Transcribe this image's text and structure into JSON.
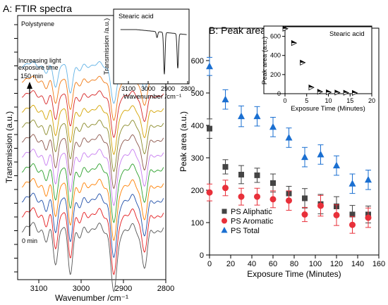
{
  "chart_data": [
    {
      "type": "line",
      "title": "A: FTIR spectra",
      "subtitle": "Polystyrene",
      "xlabel": "Wavenumber /cm⁻¹",
      "ylabel": "Transmission (a.u.)",
      "xlim": [
        3150,
        2800
      ],
      "x_ticks": [
        "3100",
        "3000",
        "2900",
        "2800"
      ],
      "annotations": {
        "arrow_text_line1": "Increasing light",
        "arrow_text_line2": "exposure time",
        "top_time": "150 min",
        "bottom_time": "0 min"
      },
      "series_colors": [
        "#555555",
        "#e41a1c",
        "#1f4ea8",
        "#ff7f00",
        "#2ca02c",
        "#c77cf0",
        "#8c564b",
        "#8a8a2a",
        "#d4a300",
        "#d62728",
        "#f07a14",
        "#63b3e6"
      ],
      "peaks": [
        {
          "x": 3082,
          "depth": 0.35
        },
        {
          "x": 3060,
          "depth": 0.75
        },
        {
          "x": 3026,
          "depth": 1.0
        },
        {
          "x": 3002,
          "depth": 0.25
        },
        {
          "x": 2922,
          "depth": 1.5
        },
        {
          "x": 2850,
          "depth": 0.85
        }
      ],
      "inset": {
        "title": "Stearic acid",
        "xlabel": "Wavenumber /cm⁻¹",
        "ylabel": "Transmission /a.u.)",
        "xlim": [
          3150,
          2800
        ],
        "x_ticks": [
          "3100",
          "3000",
          "2900",
          "2800"
        ],
        "peaks": [
          {
            "x": 2955,
            "depth": 0.12
          },
          {
            "x": 2918,
            "depth": 0.85
          },
          {
            "x": 2850,
            "depth": 0.7
          }
        ]
      }
    },
    {
      "type": "scatter",
      "title": "B: Peak areas",
      "xlabel": "Exposure Time (Minutes)",
      "ylabel": "Peak area (a.u.)",
      "xlim": [
        0,
        160
      ],
      "ylim": [
        0,
        700
      ],
      "x_ticks": [
        0,
        20,
        40,
        60,
        80,
        100,
        120,
        140,
        160
      ],
      "y_ticks": [
        0,
        100,
        200,
        300,
        400,
        500,
        600
      ],
      "legend_position": "bottom-left",
      "x": [
        0,
        15,
        30,
        45,
        60,
        75,
        90,
        105,
        120,
        135,
        150
      ],
      "series": [
        {
          "name": "PS Aliphatic",
          "color": "#444444",
          "marker": "square",
          "values": [
            390,
            272,
            248,
            246,
            222,
            190,
            175,
            157,
            150,
            125,
            125
          ],
          "errors": [
            30,
            22,
            28,
            22,
            28,
            22,
            30,
            30,
            30,
            28,
            26
          ]
        },
        {
          "name": "PS Aromatic",
          "color": "#e8303a",
          "marker": "circle",
          "values": [
            193,
            207,
            180,
            180,
            172,
            168,
            125,
            152,
            123,
            93,
            115
          ],
          "errors": [
            26,
            24,
            26,
            26,
            26,
            30,
            22,
            32,
            32,
            26,
            30
          ]
        },
        {
          "name": "PS Total",
          "color": "#1a6fd1",
          "marker": "triangle",
          "values": [
            582,
            480,
            428,
            428,
            395,
            362,
            302,
            310,
            276,
            220,
            232
          ],
          "errors": [
            28,
            30,
            32,
            30,
            30,
            30,
            30,
            30,
            30,
            30,
            30
          ]
        }
      ],
      "inset": {
        "title": "Stearic acid",
        "xlabel": "Exposure Time (Minutes)",
        "ylabel": "Peak area (a.u.)",
        "xlim": [
          0,
          20
        ],
        "ylim": [
          0,
          700
        ],
        "x_ticks": [
          0,
          5,
          10,
          15,
          20
        ],
        "y_ticks": [
          0,
          200,
          400,
          600
        ],
        "marker": "half-filled right triangle",
        "x": [
          0,
          2,
          4,
          6,
          8,
          10,
          12,
          14,
          16
        ],
        "values": [
          680,
          530,
          325,
          65,
          20,
          15,
          12,
          10,
          8
        ]
      }
    }
  ]
}
